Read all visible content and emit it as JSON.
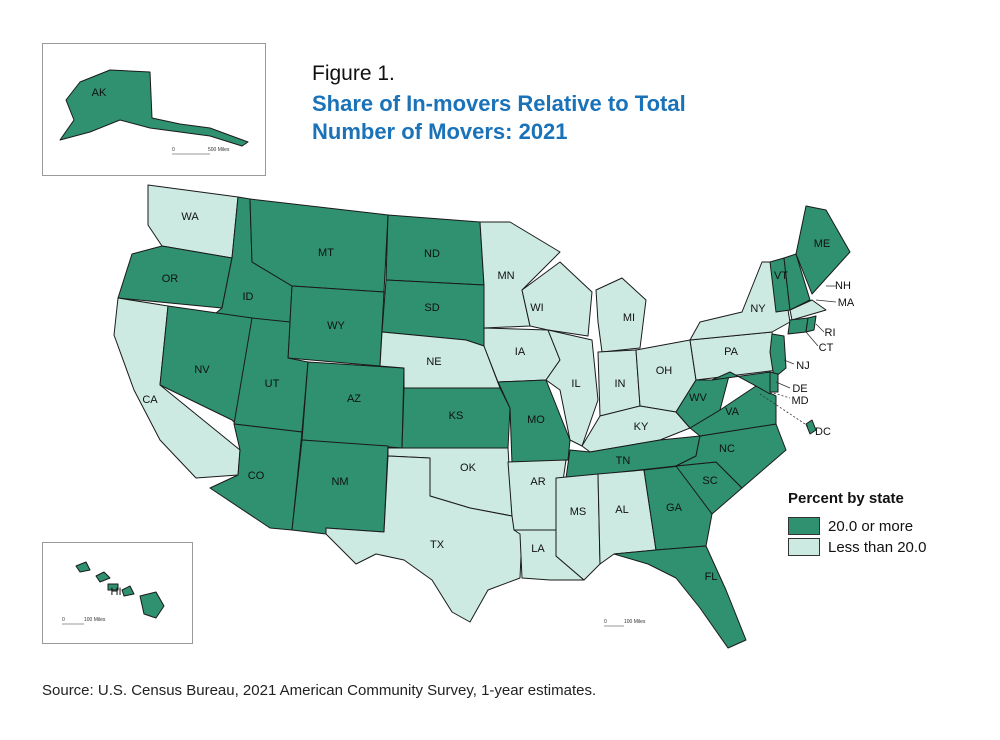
{
  "figure_label": "Figure 1.",
  "title": "Share of In-movers Relative to Total Number of Movers: 2021",
  "source": "Source: U.S. Census Bureau, 2021 American Community Survey, 1-year estimates.",
  "colors": {
    "high": "#2f9170",
    "low": "#cdeae2",
    "border": "#1a1a1a",
    "title": "#1a72b8"
  },
  "legend": {
    "title": "Percent by state",
    "items": [
      {
        "label": "20.0 or more",
        "color": "#2f9170"
      },
      {
        "label": "Less than 20.0",
        "color": "#cdeae2"
      }
    ]
  },
  "scales": {
    "alaska": "500 Miles",
    "hawaii": "100 Miles",
    "mainland": "100 Miles",
    "zero": "0"
  },
  "states": [
    {
      "abbr": "WA",
      "category": "low"
    },
    {
      "abbr": "OR",
      "category": "high"
    },
    {
      "abbr": "CA",
      "category": "low"
    },
    {
      "abbr": "ID",
      "category": "high"
    },
    {
      "abbr": "NV",
      "category": "high"
    },
    {
      "abbr": "MT",
      "category": "high"
    },
    {
      "abbr": "WY",
      "category": "high"
    },
    {
      "abbr": "UT",
      "category": "high"
    },
    {
      "abbr": "AZ",
      "category": "high"
    },
    {
      "abbr": "CO",
      "category": "high"
    },
    {
      "abbr": "NM",
      "category": "high"
    },
    {
      "abbr": "ND",
      "category": "high"
    },
    {
      "abbr": "SD",
      "category": "high"
    },
    {
      "abbr": "NE",
      "category": "low"
    },
    {
      "abbr": "KS",
      "category": "high"
    },
    {
      "abbr": "OK",
      "category": "low"
    },
    {
      "abbr": "TX",
      "category": "low"
    },
    {
      "abbr": "MN",
      "category": "low"
    },
    {
      "abbr": "IA",
      "category": "low"
    },
    {
      "abbr": "MO",
      "category": "high"
    },
    {
      "abbr": "AR",
      "category": "low"
    },
    {
      "abbr": "LA",
      "category": "low"
    },
    {
      "abbr": "WI",
      "category": "low"
    },
    {
      "abbr": "IL",
      "category": "low"
    },
    {
      "abbr": "MI",
      "category": "low"
    },
    {
      "abbr": "IN",
      "category": "low"
    },
    {
      "abbr": "OH",
      "category": "low"
    },
    {
      "abbr": "KY",
      "category": "low"
    },
    {
      "abbr": "TN",
      "category": "high"
    },
    {
      "abbr": "MS",
      "category": "low"
    },
    {
      "abbr": "AL",
      "category": "low"
    },
    {
      "abbr": "GA",
      "category": "high"
    },
    {
      "abbr": "FL",
      "category": "high"
    },
    {
      "abbr": "SC",
      "category": "high"
    },
    {
      "abbr": "NC",
      "category": "high"
    },
    {
      "abbr": "VA",
      "category": "high"
    },
    {
      "abbr": "WV",
      "category": "high"
    },
    {
      "abbr": "PA",
      "category": "low"
    },
    {
      "abbr": "NY",
      "category": "low"
    },
    {
      "abbr": "VT",
      "category": "high"
    },
    {
      "abbr": "NH",
      "category": "high"
    },
    {
      "abbr": "ME",
      "category": "high"
    },
    {
      "abbr": "MA",
      "category": "low"
    },
    {
      "abbr": "RI",
      "category": "high"
    },
    {
      "abbr": "CT",
      "category": "high"
    },
    {
      "abbr": "NJ",
      "category": "high"
    },
    {
      "abbr": "DE",
      "category": "high"
    },
    {
      "abbr": "MD",
      "category": "high"
    },
    {
      "abbr": "DC",
      "category": "high"
    },
    {
      "abbr": "AK",
      "category": "high"
    },
    {
      "abbr": "HI",
      "category": "high"
    }
  ]
}
